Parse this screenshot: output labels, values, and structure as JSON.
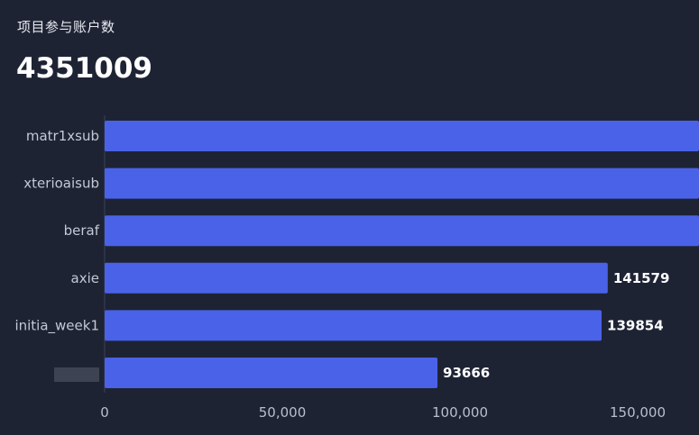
{
  "header": {
    "title": "项目参与账户数",
    "total": "4351009"
  },
  "chart_data": {
    "type": "bar",
    "orientation": "horizontal",
    "categories": [
      "matr1xsub",
      "xterioaisub",
      "beraf",
      "axie",
      "initia_week1",
      ""
    ],
    "values": [
      null,
      null,
      null,
      141579,
      139854,
      93666
    ],
    "value_labels": [
      "",
      "",
      "",
      "141579",
      "139854",
      "93666"
    ],
    "xlim": [
      0,
      150000
    ],
    "xticks": [
      0,
      50000,
      100000,
      150000
    ],
    "xtick_labels": [
      "0",
      "50,000",
      "100,000",
      "150,000"
    ],
    "bar_color": "#4a62e8",
    "grid": false
  }
}
